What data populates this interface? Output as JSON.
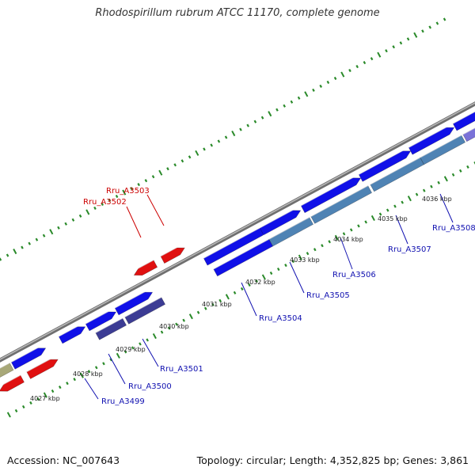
{
  "title": "Rhodospirillum rubrum ATCC 11170, complete genome",
  "footer": {
    "accession": "Accession: NC_007643",
    "stats": "Topology: circular; Length: 4,352,825 bp; Genes: 3,861"
  },
  "colors": {
    "forward_gene": "#1010e8",
    "reverse_gene_red": "#e01010",
    "olive_gene": "#a8a878",
    "dark_purple_cds": "#3c3c94",
    "steel_blue_cds": "#4f83b4",
    "light_purple_cds": "#7a72d8",
    "backbone": "#888888",
    "tick": "#2a8a2a",
    "label_blue": "#1010b0",
    "label_red": "#cc0000"
  },
  "ticks": [
    {
      "label": "4027 kbp"
    },
    {
      "label": "4028 kbp"
    },
    {
      "label": "4029 kbp"
    },
    {
      "label": "4030 kbp"
    },
    {
      "label": "4031 kbp"
    },
    {
      "label": "4032 kbp"
    },
    {
      "label": "4033 kbp"
    },
    {
      "label": "4034 kbp"
    },
    {
      "label": "4035 kbp"
    },
    {
      "label": "4036 kbp"
    }
  ],
  "gene_labels": {
    "Rru_A3499": "Rru_A3499",
    "Rru_A3500": "Rru_A3500",
    "Rru_A3501": "Rru_A3501",
    "Rru_A3502": "Rru_A3502",
    "Rru_A3503": "Rru_A3503",
    "Rru_A3504": "Rru_A3504",
    "Rru_A3505": "Rru_A3505",
    "Rru_A3506": "Rru_A3506",
    "Rru_A3507": "Rru_A3507",
    "Rru_A3508": "Rru_A3508"
  }
}
